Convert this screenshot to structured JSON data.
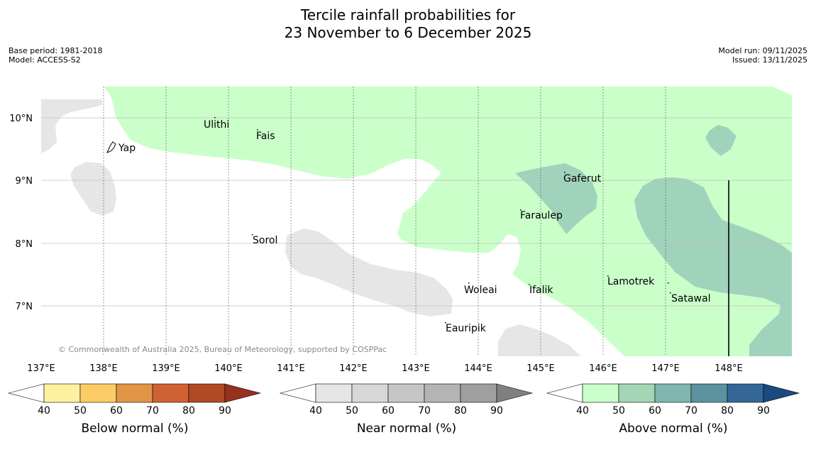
{
  "title": {
    "line1": "Tercile rainfall probabilities for",
    "line2": "23 November to 6 December 2025"
  },
  "meta_left": {
    "base_period": "Base period: 1981-2018",
    "model": "Model: ACCESS-S2"
  },
  "meta_right": {
    "model_run": "Model run: 09/11/2025",
    "issued": "Issued: 13/11/2025"
  },
  "map": {
    "lon_labels": [
      "137°E",
      "138°E",
      "139°E",
      "140°E",
      "141°E",
      "142°E",
      "143°E",
      "144°E",
      "145°E",
      "146°E",
      "147°E",
      "148°E"
    ],
    "lat_labels": [
      "10°N",
      "9°N",
      "8°N",
      "7°N"
    ],
    "places": [
      {
        "name": "Ulithi"
      },
      {
        "name": "Fais"
      },
      {
        "name": "Yap"
      },
      {
        "name": "Gaferut"
      },
      {
        "name": "Faraulep"
      },
      {
        "name": "Sorol"
      },
      {
        "name": "Lamotrek"
      },
      {
        "name": "Woleai"
      },
      {
        "name": "Ifalik"
      },
      {
        "name": "Satawal"
      },
      {
        "name": "Eauripik"
      }
    ],
    "copyright": "© Commonwealth of Australia 2025, Bureau of Meteorology, supported by COSPPac"
  },
  "colorbars": [
    {
      "label": "Below normal (%)",
      "ticks": [
        "40",
        "50",
        "60",
        "70",
        "80",
        "90"
      ],
      "under_color": "#ffffff",
      "colors": [
        "#fff0a0",
        "#fecc66",
        "#e29545",
        "#d06133",
        "#b04a25"
      ],
      "over_color": "#96301f"
    },
    {
      "label": "Near normal (%)",
      "ticks": [
        "40",
        "50",
        "60",
        "70",
        "80",
        "90"
      ],
      "under_color": "#ffffff",
      "colors": [
        "#e6e6e6",
        "#d7d7d7",
        "#c6c6c6",
        "#b4b4b4",
        "#9f9f9f"
      ],
      "over_color": "#808080"
    },
    {
      "label": "Above normal (%)",
      "ticks": [
        "40",
        "50",
        "60",
        "70",
        "80",
        "90"
      ],
      "under_color": "#ffffff",
      "colors": [
        "#caffca",
        "#a2d6b5",
        "#7fb6af",
        "#5c92a0",
        "#356698"
      ],
      "over_color": "#1a4a80"
    }
  ],
  "colors": {
    "above_40_50": "#caffca",
    "above_50_60": "#a0d3bb",
    "near_40_50": "#e6e6e6",
    "land": "#ffffff"
  }
}
